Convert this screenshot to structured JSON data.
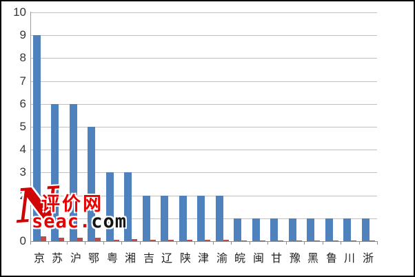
{
  "chart_data": {
    "type": "bar",
    "title": "",
    "xlabel": "",
    "ylabel": "",
    "categories": [
      "京",
      "苏",
      "沪",
      "鄂",
      "粤",
      "湘",
      "吉",
      "辽",
      "陕",
      "津",
      "渝",
      "皖",
      "闽",
      "甘",
      "豫",
      "黑",
      "鲁",
      "川",
      "浙"
    ],
    "series": [
      {
        "name": "blue-series",
        "color": "#4f81bd",
        "values": [
          9,
          6,
          6,
          5,
          3,
          3,
          2,
          2,
          2,
          2,
          2,
          1,
          1,
          1,
          1,
          1,
          1,
          1,
          1
        ]
      },
      {
        "name": "red-series",
        "color": "#be4b48",
        "values": [
          0.2,
          0.15,
          0.15,
          0.15,
          0.05,
          0.1,
          0.05,
          0.05,
          0.05,
          0.05,
          0.05,
          0.03,
          0.03,
          0.03,
          0.03,
          0.03,
          0.03,
          0.03,
          0.03
        ]
      }
    ],
    "ylim": [
      0,
      10
    ],
    "yticks": [
      0,
      1,
      2,
      3,
      4,
      5,
      6,
      7,
      8,
      9,
      10
    ],
    "grid": true,
    "legend_position": "none"
  },
  "colors": {
    "background": "#ffffff",
    "border": "#000000",
    "gridline": "#bfbfbf",
    "axis": "#8f8f8f",
    "tick_text": "#353535",
    "bar_blue": "#4f81bd",
    "bar_red": "#be4b48",
    "watermark_red": "#e60000",
    "watermark_black": "#141414"
  },
  "watermark": {
    "initial": "N",
    "cn_text": "评价网",
    "latin_red": "seac.",
    "latin_black": "com"
  }
}
